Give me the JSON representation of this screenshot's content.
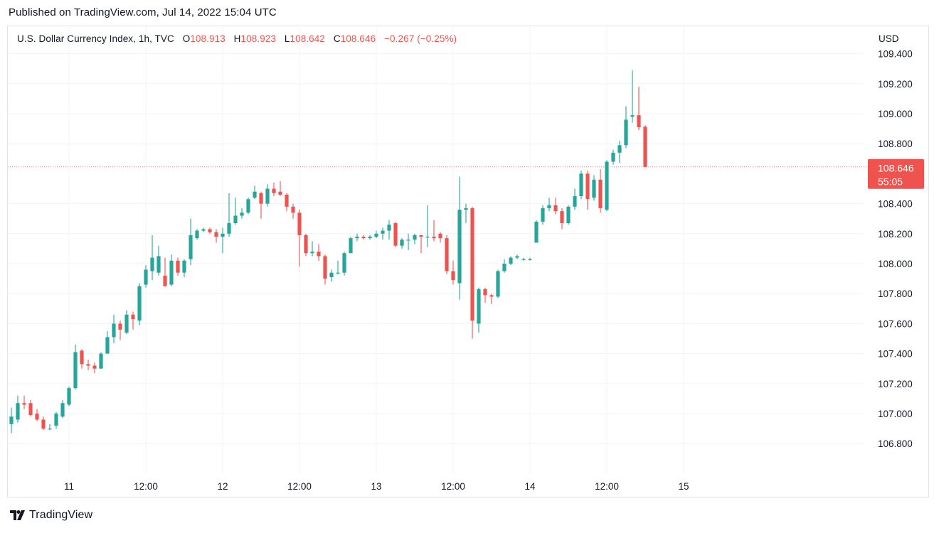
{
  "header": {
    "published": "Published on TradingView.com, Jul 14, 2022 15:04 UTC"
  },
  "legend": {
    "symbol": "U.S. Dollar Currency Index, 1h, TVC",
    "open_label": "O",
    "open": "108.913",
    "high_label": "H",
    "high": "108.923",
    "low_label": "L",
    "low": "108.642",
    "close_label": "C",
    "close": "108.646",
    "change": "−0.267 (−0.25%)"
  },
  "currency": "USD",
  "footer": {
    "brand": "TradingView",
    "logo_icon": "tradingview-logo-icon"
  },
  "colors": {
    "up": "#26a69a",
    "down": "#ef5350",
    "grid": "#f0f3fa",
    "axis_text": "#131722"
  },
  "chart_data": {
    "type": "candlestick",
    "title": "U.S. Dollar Currency Index, 1h, TVC",
    "ylabel": "USD",
    "ylim": [
      106.6,
      109.45
    ],
    "y_ticks": [
      "109.400",
      "109.200",
      "109.000",
      "108.800",
      "108.400",
      "108.200",
      "108.000",
      "107.800",
      "107.600",
      "107.400",
      "107.200",
      "107.000",
      "106.800"
    ],
    "x_ticks": [
      {
        "label": "11",
        "i": 9
      },
      {
        "label": "12:00",
        "i": 21
      },
      {
        "label": "12",
        "i": 33
      },
      {
        "label": "12:00",
        "i": 45
      },
      {
        "label": "13",
        "i": 57
      },
      {
        "label": "12:00",
        "i": 69
      },
      {
        "label": "14",
        "i": 81
      },
      {
        "label": "12:00",
        "i": 93
      },
      {
        "label": "15",
        "i": 105
      }
    ],
    "last_price": "108.646",
    "countdown": "55:05",
    "last_value": 108.646,
    "candles": [
      {
        "o": 106.93,
        "h": 107.04,
        "l": 106.87,
        "c": 106.98
      },
      {
        "o": 106.96,
        "h": 107.12,
        "l": 106.94,
        "c": 107.07
      },
      {
        "o": 107.07,
        "h": 107.12,
        "l": 107.03,
        "c": 107.06
      },
      {
        "o": 107.07,
        "h": 107.09,
        "l": 106.98,
        "c": 106.99
      },
      {
        "o": 107.0,
        "h": 107.03,
        "l": 106.95,
        "c": 106.96
      },
      {
        "o": 106.96,
        "h": 106.98,
        "l": 106.89,
        "c": 106.9
      },
      {
        "o": 106.9,
        "h": 106.93,
        "l": 106.89,
        "c": 106.9
      },
      {
        "o": 106.92,
        "h": 107.01,
        "l": 106.9,
        "c": 107.0
      },
      {
        "o": 106.98,
        "h": 107.09,
        "l": 106.97,
        "c": 107.07
      },
      {
        "o": 107.06,
        "h": 107.18,
        "l": 107.05,
        "c": 107.17
      },
      {
        "o": 107.17,
        "h": 107.46,
        "l": 107.16,
        "c": 107.41
      },
      {
        "o": 107.42,
        "h": 107.43,
        "l": 107.3,
        "c": 107.33
      },
      {
        "o": 107.33,
        "h": 107.36,
        "l": 107.29,
        "c": 107.32
      },
      {
        "o": 107.32,
        "h": 107.34,
        "l": 107.27,
        "c": 107.3
      },
      {
        "o": 107.3,
        "h": 107.41,
        "l": 107.3,
        "c": 107.4
      },
      {
        "o": 107.4,
        "h": 107.55,
        "l": 107.4,
        "c": 107.51
      },
      {
        "o": 107.51,
        "h": 107.66,
        "l": 107.47,
        "c": 107.6
      },
      {
        "o": 107.6,
        "h": 107.62,
        "l": 107.49,
        "c": 107.56
      },
      {
        "o": 107.54,
        "h": 107.69,
        "l": 107.53,
        "c": 107.66
      },
      {
        "o": 107.66,
        "h": 107.68,
        "l": 107.56,
        "c": 107.63
      },
      {
        "o": 107.62,
        "h": 107.87,
        "l": 107.59,
        "c": 107.85
      },
      {
        "o": 107.86,
        "h": 107.99,
        "l": 107.84,
        "c": 107.96
      },
      {
        "o": 107.95,
        "h": 108.19,
        "l": 107.89,
        "c": 108.04
      },
      {
        "o": 107.94,
        "h": 108.12,
        "l": 107.92,
        "c": 108.05
      },
      {
        "o": 107.92,
        "h": 108.04,
        "l": 107.85,
        "c": 107.85
      },
      {
        "o": 107.86,
        "h": 108.06,
        "l": 107.85,
        "c": 108.02
      },
      {
        "o": 108.02,
        "h": 108.04,
        "l": 107.92,
        "c": 107.94
      },
      {
        "o": 107.94,
        "h": 108.03,
        "l": 107.91,
        "c": 108.02
      },
      {
        "o": 108.03,
        "h": 108.3,
        "l": 107.99,
        "c": 108.19
      },
      {
        "o": 108.17,
        "h": 108.23,
        "l": 108.16,
        "c": 108.22
      },
      {
        "o": 108.22,
        "h": 108.24,
        "l": 108.21,
        "c": 108.23
      },
      {
        "o": 108.23,
        "h": 108.24,
        "l": 108.2,
        "c": 108.21
      },
      {
        "o": 108.21,
        "h": 108.23,
        "l": 108.14,
        "c": 108.18
      },
      {
        "o": 108.18,
        "h": 108.24,
        "l": 108.07,
        "c": 108.2
      },
      {
        "o": 108.2,
        "h": 108.47,
        "l": 108.18,
        "c": 108.27
      },
      {
        "o": 108.27,
        "h": 108.44,
        "l": 108.26,
        "c": 108.32
      },
      {
        "o": 108.32,
        "h": 108.37,
        "l": 108.3,
        "c": 108.34
      },
      {
        "o": 108.34,
        "h": 108.44,
        "l": 108.33,
        "c": 108.43
      },
      {
        "o": 108.44,
        "h": 108.52,
        "l": 108.43,
        "c": 108.48
      },
      {
        "o": 108.47,
        "h": 108.48,
        "l": 108.3,
        "c": 108.4
      },
      {
        "o": 108.4,
        "h": 108.53,
        "l": 108.38,
        "c": 108.5
      },
      {
        "o": 108.5,
        "h": 108.54,
        "l": 108.45,
        "c": 108.47
      },
      {
        "o": 108.48,
        "h": 108.55,
        "l": 108.45,
        "c": 108.46
      },
      {
        "o": 108.46,
        "h": 108.47,
        "l": 108.35,
        "c": 108.38
      },
      {
        "o": 108.38,
        "h": 108.4,
        "l": 108.3,
        "c": 108.34
      },
      {
        "o": 108.34,
        "h": 108.36,
        "l": 107.98,
        "c": 108.19
      },
      {
        "o": 108.19,
        "h": 108.2,
        "l": 108.05,
        "c": 108.07
      },
      {
        "o": 108.07,
        "h": 108.15,
        "l": 108.05,
        "c": 108.08
      },
      {
        "o": 108.08,
        "h": 108.13,
        "l": 108.02,
        "c": 108.05
      },
      {
        "o": 108.05,
        "h": 108.06,
        "l": 107.86,
        "c": 107.9
      },
      {
        "o": 107.91,
        "h": 107.96,
        "l": 107.88,
        "c": 107.94
      },
      {
        "o": 107.94,
        "h": 108.02,
        "l": 107.93,
        "c": 107.94
      },
      {
        "o": 107.94,
        "h": 108.08,
        "l": 107.92,
        "c": 108.07
      },
      {
        "o": 108.07,
        "h": 108.18,
        "l": 108.07,
        "c": 108.17
      },
      {
        "o": 108.17,
        "h": 108.2,
        "l": 108.15,
        "c": 108.18
      },
      {
        "o": 108.18,
        "h": 108.19,
        "l": 108.16,
        "c": 108.17
      },
      {
        "o": 108.17,
        "h": 108.19,
        "l": 108.16,
        "c": 108.18
      },
      {
        "o": 108.18,
        "h": 108.22,
        "l": 108.17,
        "c": 108.2
      },
      {
        "o": 108.2,
        "h": 108.24,
        "l": 108.16,
        "c": 108.22
      },
      {
        "o": 108.22,
        "h": 108.29,
        "l": 108.16,
        "c": 108.26
      },
      {
        "o": 108.27,
        "h": 108.28,
        "l": 108.11,
        "c": 108.12
      },
      {
        "o": 108.12,
        "h": 108.17,
        "l": 108.1,
        "c": 108.16
      },
      {
        "o": 108.16,
        "h": 108.2,
        "l": 108.09,
        "c": 108.16
      },
      {
        "o": 108.16,
        "h": 108.2,
        "l": 108.13,
        "c": 108.19
      },
      {
        "o": 108.19,
        "h": 108.19,
        "l": 108.07,
        "c": 108.18
      },
      {
        "o": 108.18,
        "h": 108.39,
        "l": 108.11,
        "c": 108.18
      },
      {
        "o": 108.18,
        "h": 108.29,
        "l": 108.15,
        "c": 108.17
      },
      {
        "o": 108.2,
        "h": 108.21,
        "l": 108.14,
        "c": 108.17
      },
      {
        "o": 108.17,
        "h": 108.19,
        "l": 107.93,
        "c": 107.95
      },
      {
        "o": 107.95,
        "h": 108.02,
        "l": 107.86,
        "c": 107.89
      },
      {
        "o": 107.87,
        "h": 108.58,
        "l": 107.76,
        "c": 108.36
      },
      {
        "o": 108.36,
        "h": 108.4,
        "l": 108.27,
        "c": 108.37
      },
      {
        "o": 108.37,
        "h": 108.38,
        "l": 107.5,
        "c": 107.62
      },
      {
        "o": 107.6,
        "h": 107.84,
        "l": 107.54,
        "c": 107.83
      },
      {
        "o": 107.83,
        "h": 107.84,
        "l": 107.74,
        "c": 107.79
      },
      {
        "o": 107.79,
        "h": 107.8,
        "l": 107.73,
        "c": 107.78
      },
      {
        "o": 107.78,
        "h": 107.96,
        "l": 107.77,
        "c": 107.95
      },
      {
        "o": 107.95,
        "h": 108.03,
        "l": 107.94,
        "c": 108.0
      },
      {
        "o": 108.0,
        "h": 108.05,
        "l": 107.99,
        "c": 108.04
      },
      {
        "o": 108.04,
        "h": 108.06,
        "l": 108.03,
        "c": 108.05
      },
      {
        "o": 108.03,
        "h": 108.04,
        "l": 108.02,
        "c": 108.03
      },
      {
        "o": 108.03,
        "h": 108.04,
        "l": 108.02,
        "c": 108.03
      },
      {
        "o": 108.14,
        "h": 108.29,
        "l": 108.14,
        "c": 108.28
      },
      {
        "o": 108.28,
        "h": 108.39,
        "l": 108.26,
        "c": 108.37
      },
      {
        "o": 108.37,
        "h": 108.44,
        "l": 108.35,
        "c": 108.39
      },
      {
        "o": 108.39,
        "h": 108.44,
        "l": 108.33,
        "c": 108.35
      },
      {
        "o": 108.35,
        "h": 108.37,
        "l": 108.23,
        "c": 108.27
      },
      {
        "o": 108.27,
        "h": 108.39,
        "l": 108.26,
        "c": 108.38
      },
      {
        "o": 108.38,
        "h": 108.5,
        "l": 108.36,
        "c": 108.45
      },
      {
        "o": 108.45,
        "h": 108.62,
        "l": 108.43,
        "c": 108.6
      },
      {
        "o": 108.6,
        "h": 108.62,
        "l": 108.36,
        "c": 108.43
      },
      {
        "o": 108.44,
        "h": 108.59,
        "l": 108.42,
        "c": 108.56
      },
      {
        "o": 108.56,
        "h": 108.63,
        "l": 108.34,
        "c": 108.37
      },
      {
        "o": 108.36,
        "h": 108.69,
        "l": 108.35,
        "c": 108.68
      },
      {
        "o": 108.68,
        "h": 108.76,
        "l": 108.66,
        "c": 108.74
      },
      {
        "o": 108.74,
        "h": 108.82,
        "l": 108.67,
        "c": 108.79
      },
      {
        "o": 108.79,
        "h": 109.05,
        "l": 108.77,
        "c": 108.96
      },
      {
        "o": 108.98,
        "h": 109.29,
        "l": 108.94,
        "c": 108.99
      },
      {
        "o": 108.99,
        "h": 109.18,
        "l": 108.89,
        "c": 108.91
      },
      {
        "o": 108.913,
        "h": 108.923,
        "l": 108.642,
        "c": 108.646
      }
    ]
  }
}
